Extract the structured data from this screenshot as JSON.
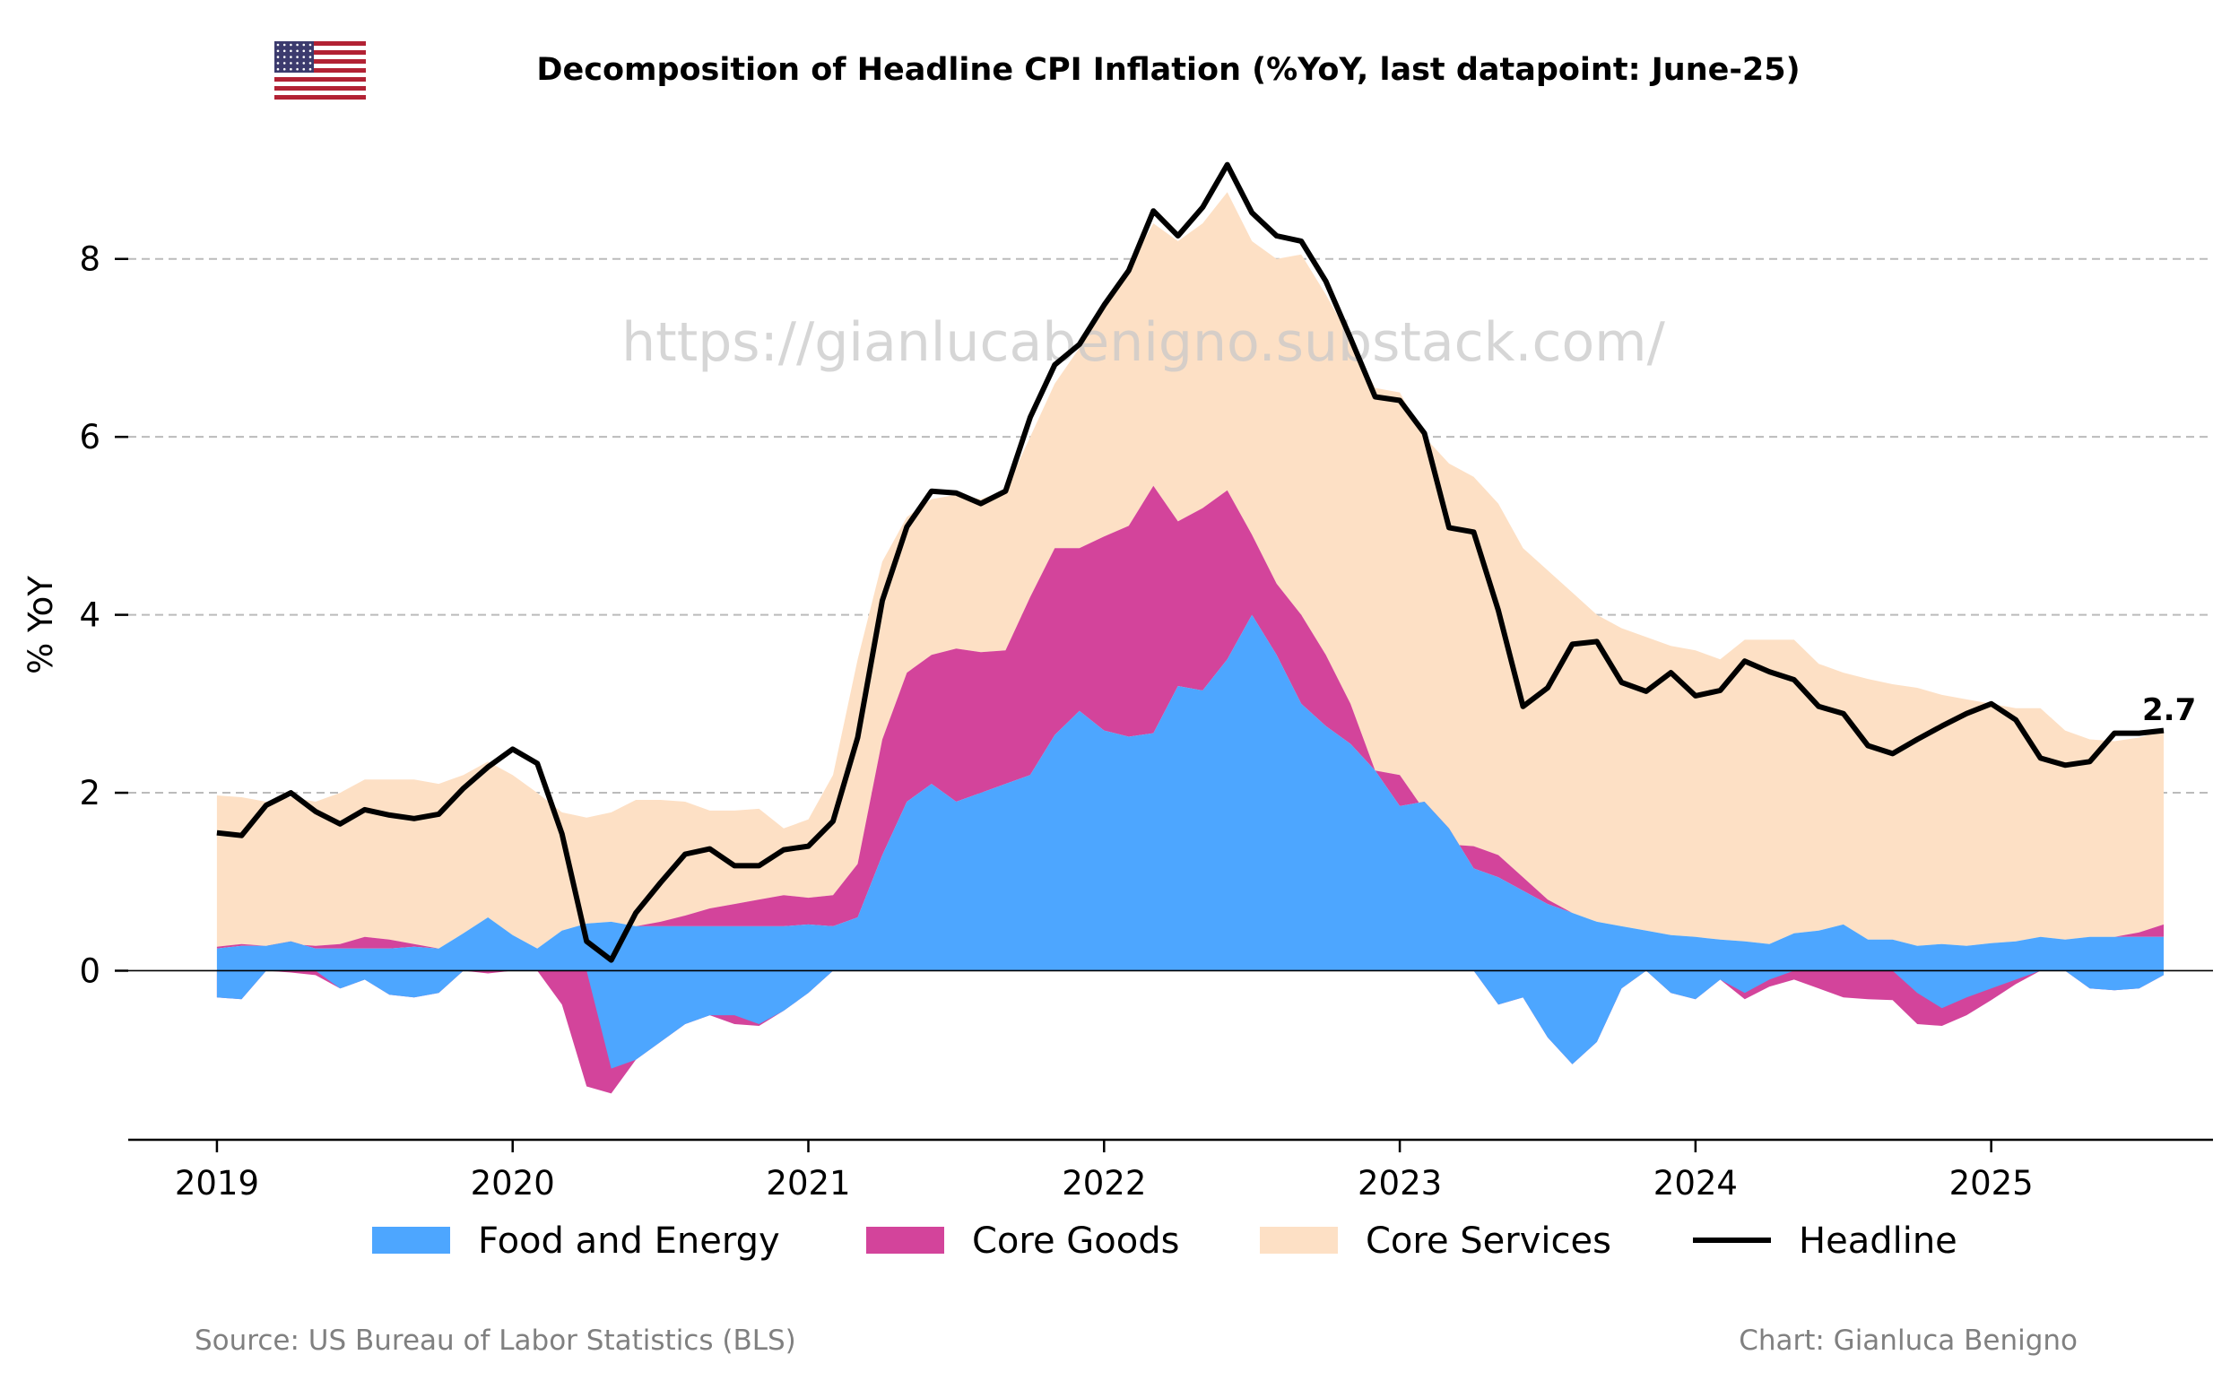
{
  "chart_data": {
    "type": "area",
    "title": "Decomposition of Headline CPI Inflation (%YoY, last datapoint: June-25)",
    "ylabel": "% YoY",
    "xlabel": "",
    "ylim": [
      -1.9,
      9.6
    ],
    "xlim": [
      2018.7,
      2025.75
    ],
    "yticks": [
      0,
      2,
      4,
      6,
      8
    ],
    "xticks": [
      "2019",
      "2020",
      "2021",
      "2022",
      "2023",
      "2024",
      "2025"
    ],
    "grid": "horizontal dashed",
    "legend_position": "bottom",
    "start": "2019-01",
    "end": "2025-06",
    "series": [
      {
        "name": "Food and Energy",
        "kind": "stacked-area",
        "color": "#4da6ff",
        "values": [
          -0.3,
          -0.32,
          0.0,
          0.05,
          0.0,
          -0.2,
          -0.1,
          -0.27,
          -0.3,
          -0.25,
          0.0,
          0.0,
          0.0,
          0.0,
          0.0,
          0.0,
          -1.1,
          -1.2,
          -0.8,
          -0.7,
          -0.55,
          -0.5,
          -0.6,
          -0.62,
          -0.45,
          -0.25,
          0.0,
          0.5,
          1.3,
          1.9,
          2.1,
          1.9,
          2.0,
          2.1,
          2.2,
          2.65,
          2.92,
          2.7,
          2.63,
          2.67,
          3.2,
          3.15,
          3.5,
          4.0,
          3.55,
          3.0,
          2.75,
          2.55,
          2.25,
          1.85,
          1.9,
          1.6,
          1.15,
          1.05,
          0.9,
          0.75,
          0.65,
          0.55,
          0.5,
          0.45,
          0.4,
          0.35,
          0.33,
          0.3,
          0.42,
          0.45,
          0.52,
          0.35,
          0.35,
          0.28,
          0.3,
          0.28,
          0.31,
          0.33,
          0.38,
          0.35,
          0.38,
          0.38,
          0.38,
          0.38
        ]
      },
      {
        "name": "Food and Energy (negative)",
        "kind": "stacked-area",
        "color": "#4da6ff",
        "values": [
          0,
          0,
          0,
          0,
          0,
          0,
          0,
          0,
          0,
          0,
          0,
          0,
          0,
          0,
          0,
          0,
          0,
          0,
          0,
          0,
          0,
          0,
          0,
          0,
          0,
          0,
          0,
          0,
          0,
          0,
          0,
          0,
          0,
          0,
          0,
          0,
          0,
          0,
          0,
          0,
          0,
          0,
          0,
          0,
          0,
          0,
          0,
          0,
          0,
          0,
          0,
          0,
          -0.38,
          -0.3,
          -0.75,
          -1.05,
          -0.8,
          -0.2,
          0.0,
          -0.25,
          -0.32,
          -0.1,
          -0.25,
          -0.1,
          0,
          0,
          0,
          0,
          0,
          -0.25,
          -0.42,
          -0.3,
          -0.2,
          -0.1,
          0,
          0,
          -0.2,
          -0.22,
          -0.2,
          -0.05
        ]
      },
      {
        "name": "Core Goods",
        "kind": "stacked-area",
        "color": "#d3449b",
        "values": [
          0.0,
          0.02,
          -0.02,
          -0.05,
          0.0,
          0.05,
          0.12,
          0.08,
          0.0,
          0.0,
          0.0,
          0.0,
          0.0,
          0.0,
          -0.38,
          -0.2,
          -0.2,
          -0.25,
          -0.1,
          -0.05,
          0.05,
          0.18,
          0.2,
          0.25,
          0.3,
          0.3,
          0.25,
          0.0,
          0.0,
          0.0,
          0.0,
          0.0,
          0.0,
          0.0,
          0.0,
          0.0,
          0.0,
          0.0,
          0.0,
          0.0,
          0.0,
          0.0,
          0.0,
          0.0,
          0.0,
          0.0,
          0.0,
          0.0,
          0.0,
          0.0,
          0.0,
          0.0,
          0.0,
          0.0,
          0.0,
          0.0,
          0.0,
          0.0,
          0.0,
          0.0,
          0.0,
          0.0,
          0.0,
          0.0,
          0.0,
          0.0,
          0.0,
          0.0,
          0.0,
          0.0,
          0.0,
          0.0,
          0.0,
          0.0,
          0.0,
          0.0,
          0.0,
          0.0,
          0.05,
          0.12
        ]
      },
      {
        "name": "Core Goods (band)",
        "kind": "stacked-area",
        "color": "#d3449b",
        "values": [
          0,
          0,
          0,
          0,
          0,
          0,
          0,
          0,
          0,
          0,
          0,
          0,
          0,
          0,
          0,
          0,
          -0.1,
          -0.15,
          -0.1,
          -0.05,
          0,
          0,
          0,
          0,
          0,
          0,
          0,
          0,
          0,
          0,
          0,
          0,
          0,
          0,
          0,
          0,
          0,
          0,
          0,
          0,
          0,
          0,
          0,
          0,
          0,
          0,
          0,
          0,
          0,
          0,
          0,
          0,
          0,
          0,
          0,
          0,
          0,
          0,
          0,
          0,
          0,
          0,
          0,
          0,
          0,
          0,
          0,
          0,
          0,
          0,
          0,
          0,
          0,
          0,
          0,
          0,
          0,
          0,
          0,
          0
        ]
      }
    ],
    "stack_bottom": [
      -0.3,
      -0.32,
      0.0,
      -0.02,
      -0.05,
      -0.2,
      -0.1,
      -0.27,
      -0.3,
      -0.25,
      0.0,
      -0.03,
      0.0,
      0.0,
      -0.38,
      -1.3,
      -1.38,
      -1.0,
      -0.8,
      -0.6,
      -0.5,
      -0.6,
      -0.62,
      -0.45,
      -0.25,
      0.0,
      0.0,
      0.0,
      0.0,
      0.0,
      0.0,
      0.0,
      0.0,
      0.0,
      0.0,
      0.0,
      0.0,
      0.0,
      0.0,
      0.0,
      0.0,
      0.0,
      0.0,
      0.0,
      0.0,
      0.0,
      0.0,
      0.0,
      0.0,
      0.0,
      0.0,
      0.0,
      -0.38,
      -0.3,
      -0.75,
      -1.05,
      -0.8,
      -0.2,
      0.0,
      -0.25,
      -0.32,
      -0.1,
      -0.32,
      -0.18,
      -0.1,
      -0.2,
      -0.3,
      -0.32,
      -0.33,
      -0.6,
      -0.62,
      -0.5,
      -0.33,
      -0.15,
      0.0,
      0.0,
      -0.2,
      -0.22,
      -0.2,
      -0.05
    ],
    "food_energy_top": [
      0.25,
      0.28,
      0.28,
      0.33,
      0.25,
      0.25,
      0.25,
      0.25,
      0.27,
      0.25,
      0.42,
      0.6,
      0.4,
      0.25,
      0.45,
      0.53,
      0.55,
      0.5,
      0.5,
      0.5,
      0.5,
      0.5,
      0.5,
      0.5,
      0.52,
      0.5,
      0.6,
      1.3,
      1.9,
      2.1,
      1.9,
      2.0,
      2.1,
      2.2,
      2.65,
      2.92,
      2.7,
      2.63,
      2.67,
      3.2,
      3.15,
      3.5,
      4.0,
      3.55,
      3.0,
      2.75,
      2.55,
      2.25,
      1.85,
      1.9,
      1.6,
      1.15,
      1.05,
      0.9,
      0.75,
      0.65,
      0.55,
      0.5,
      0.45,
      0.4,
      0.38,
      0.35,
      0.33,
      0.3,
      0.42,
      0.45,
      0.52,
      0.35,
      0.35,
      0.28,
      0.3,
      0.28,
      0.31,
      0.33,
      0.38,
      0.35,
      0.38,
      0.38,
      0.38,
      0.38
    ],
    "core_goods_top": [
      0.27,
      0.3,
      0.28,
      0.3,
      0.28,
      0.3,
      0.38,
      0.35,
      0.3,
      0.25,
      0.42,
      0.6,
      0.4,
      0.25,
      0.45,
      0.53,
      0.55,
      0.5,
      0.55,
      0.62,
      0.7,
      0.75,
      0.8,
      0.85,
      0.82,
      0.85,
      1.2,
      2.6,
      3.35,
      3.55,
      3.62,
      3.58,
      3.6,
      4.2,
      4.75,
      4.75,
      4.88,
      5.0,
      5.45,
      5.05,
      5.2,
      5.4,
      4.9,
      4.35,
      4.0,
      3.55,
      3.0,
      2.25,
      2.2,
      1.8,
      1.42,
      1.4,
      1.3,
      1.05,
      0.8,
      0.65,
      0.55,
      0.5,
      0.45,
      0.4,
      0.38,
      0.35,
      0.33,
      0.3,
      0.42,
      0.45,
      0.52,
      0.35,
      0.35,
      0.28,
      0.3,
      0.28,
      0.31,
      0.33,
      0.38,
      0.35,
      0.38,
      0.38,
      0.43,
      0.52
    ],
    "core_services_top": [
      1.97,
      1.95,
      1.9,
      1.95,
      1.9,
      2.0,
      2.15,
      2.15,
      2.15,
      2.1,
      2.2,
      2.35,
      2.2,
      2.0,
      1.78,
      1.72,
      1.78,
      1.92,
      1.92,
      1.9,
      1.8,
      1.8,
      1.82,
      1.6,
      1.7,
      2.2,
      3.5,
      4.6,
      5.1,
      5.3,
      5.35,
      5.3,
      5.4,
      6.0,
      6.6,
      7.0,
      7.5,
      7.9,
      8.4,
      8.2,
      8.4,
      8.75,
      8.2,
      8.0,
      8.05,
      7.6,
      7.1,
      6.55,
      6.5,
      6.0,
      5.7,
      5.55,
      5.25,
      4.75,
      4.5,
      4.25,
      4.0,
      3.85,
      3.75,
      3.65,
      3.6,
      3.5,
      3.72,
      3.72,
      3.72,
      3.45,
      3.35,
      3.28,
      3.22,
      3.18,
      3.1,
      3.05,
      3.0,
      2.95,
      2.95,
      2.7,
      2.6,
      2.58,
      2.62,
      2.7
    ],
    "headline": {
      "name": "Headline",
      "color": "#000000",
      "values": [
        1.55,
        1.52,
        1.86,
        2.0,
        1.79,
        1.65,
        1.81,
        1.75,
        1.71,
        1.76,
        2.05,
        2.29,
        2.49,
        2.33,
        1.54,
        0.33,
        0.12,
        0.65,
        0.99,
        1.31,
        1.37,
        1.18,
        1.18,
        1.36,
        1.4,
        1.68,
        2.62,
        4.16,
        4.99,
        5.39,
        5.37,
        5.25,
        5.39,
        6.22,
        6.81,
        7.04,
        7.48,
        7.87,
        8.54,
        8.26,
        8.58,
        9.06,
        8.52,
        8.26,
        8.2,
        7.75,
        7.11,
        6.45,
        6.41,
        6.04,
        4.98,
        4.93,
        4.05,
        2.97,
        3.18,
        3.67,
        3.7,
        3.24,
        3.14,
        3.35,
        3.09,
        3.15,
        3.48,
        3.36,
        3.27,
        2.97,
        2.89,
        2.53,
        2.44,
        2.6,
        2.75,
        2.89,
        3.0,
        2.82,
        2.39,
        2.31,
        2.35,
        2.67,
        2.67,
        2.7
      ]
    },
    "last_value_label": "2.7"
  },
  "legend": [
    {
      "label": "Food and Energy",
      "color": "#4da6ff",
      "kind": "patch"
    },
    {
      "label": "Core Goods",
      "color": "#d3449b",
      "kind": "patch"
    },
    {
      "label": "Core Services",
      "color": "#fde0c5",
      "kind": "patch"
    },
    {
      "label": "Headline",
      "color": "#000000",
      "kind": "line"
    }
  ],
  "watermark": "https://gianlucabenigno.substack.com/",
  "footer": {
    "source": "Source: US Bureau of Labor Statistics (BLS)",
    "credit": "Chart: Gianluca Benigno"
  },
  "flag_icon": "us-flag-icon",
  "colors": {
    "food_energy": "#4da6ff",
    "core_goods": "#d3449b",
    "core_services": "#fde0c5",
    "headline": "#000000",
    "grid": "#bbbbbb"
  }
}
